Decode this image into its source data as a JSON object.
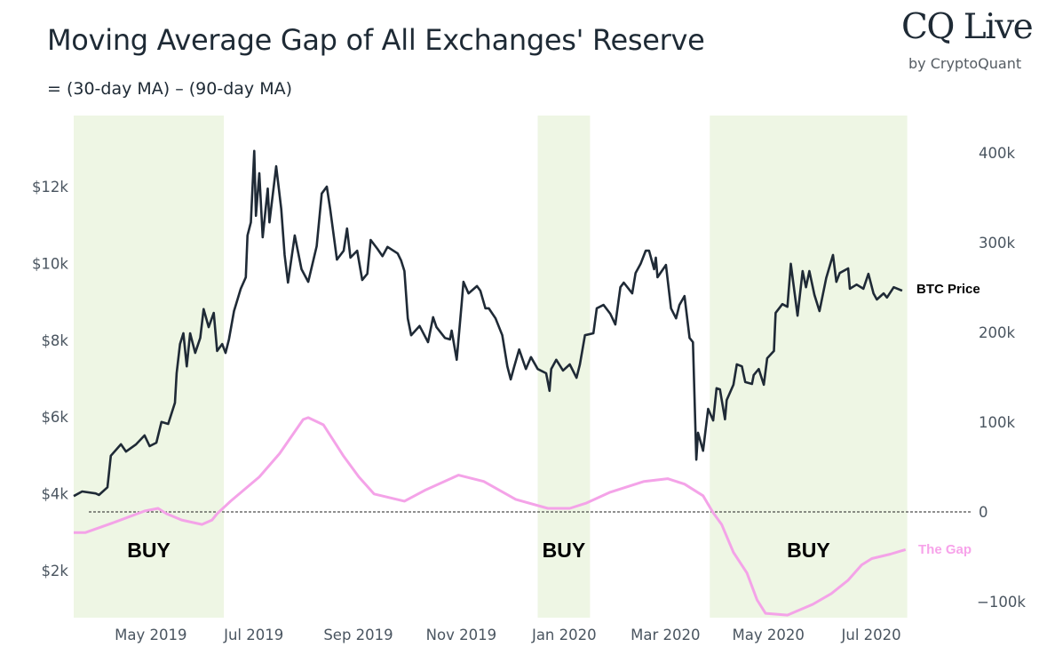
{
  "header": {
    "title": "Moving Average Gap of All Exchanges' Reserve",
    "subtitle": "= (30-day MA) – (90-day MA)"
  },
  "logo": {
    "main": "CQ Live",
    "sub": "by CryptoQuant"
  },
  "chart_data": {
    "type": "line",
    "title": "Moving Average Gap of All Exchanges' Reserve",
    "subtitle": "= (30-day MA) – (90-day MA)",
    "x_range": [
      "2019-03-10",
      "2020-07-16"
    ],
    "x_ticks": [
      {
        "date": "2019-05-01",
        "label": "May 2019"
      },
      {
        "date": "2019-07-01",
        "label": "Jul 2019"
      },
      {
        "date": "2019-09-01",
        "label": "Sep 2019"
      },
      {
        "date": "2019-11-01",
        "label": "Nov 2019"
      },
      {
        "date": "2020-01-01",
        "label": "Jan 2020"
      },
      {
        "date": "2020-03-01",
        "label": "Mar 2020"
      },
      {
        "date": "2020-05-01",
        "label": "May 2020"
      },
      {
        "date": "2020-07-01",
        "label": "Jul 2020"
      }
    ],
    "y_left": {
      "ticks": [
        2000,
        4000,
        6000,
        8000,
        10000,
        12000
      ],
      "tick_labels": [
        "$2k",
        "$4k",
        "$6k",
        "$8k",
        "$10k",
        "$12k"
      ]
    },
    "y_right": {
      "ticks": [
        -100000,
        0,
        100000,
        200000,
        300000,
        400000
      ],
      "tick_labels": [
        "−100k",
        "0",
        "100k",
        "200k",
        "300k",
        "400k"
      ]
    },
    "grid": false,
    "zero_line": {
      "axis": "right",
      "value": 0,
      "style": "dashed"
    },
    "buy_zones": [
      {
        "start": "2019-03-10",
        "end": "2019-06-07",
        "label": "BUY"
      },
      {
        "start": "2019-12-10",
        "end": "2020-01-10",
        "label": "BUY"
      },
      {
        "start": "2020-03-21",
        "end": "2020-07-16",
        "label": "BUY"
      }
    ],
    "colors": {
      "price": "#1f2a36",
      "gap": "#f4a3e8",
      "buy_zone": "#eef6e4",
      "zero_line": "#222222"
    },
    "series": [
      {
        "name": "BTC Price",
        "axis": "left",
        "points": [
          [
            "2019-03-10",
            3940
          ],
          [
            "2019-03-15",
            4060
          ],
          [
            "2019-03-23",
            4010
          ],
          [
            "2019-03-25",
            3970
          ],
          [
            "2019-03-30",
            4170
          ],
          [
            "2019-04-01",
            4990
          ],
          [
            "2019-04-07",
            5290
          ],
          [
            "2019-04-10",
            5100
          ],
          [
            "2019-04-16",
            5290
          ],
          [
            "2019-04-21",
            5520
          ],
          [
            "2019-04-24",
            5240
          ],
          [
            "2019-04-28",
            5330
          ],
          [
            "2019-05-01",
            5870
          ],
          [
            "2019-05-05",
            5820
          ],
          [
            "2019-05-09",
            6370
          ],
          [
            "2019-05-10",
            7140
          ],
          [
            "2019-05-12",
            7900
          ],
          [
            "2019-05-14",
            8180
          ],
          [
            "2019-05-16",
            7320
          ],
          [
            "2019-05-18",
            8180
          ],
          [
            "2019-05-21",
            7670
          ],
          [
            "2019-05-24",
            8060
          ],
          [
            "2019-05-26",
            8810
          ],
          [
            "2019-05-29",
            8340
          ],
          [
            "2019-06-01",
            8710
          ],
          [
            "2019-06-03",
            7720
          ],
          [
            "2019-06-06",
            7900
          ],
          [
            "2019-06-08",
            7670
          ],
          [
            "2019-06-10",
            8020
          ],
          [
            "2019-06-13",
            8760
          ],
          [
            "2019-06-17",
            9340
          ],
          [
            "2019-06-20",
            9640
          ],
          [
            "2019-06-21",
            10730
          ],
          [
            "2019-06-23",
            11070
          ],
          [
            "2019-06-25",
            12930
          ],
          [
            "2019-06-26",
            11240
          ],
          [
            "2019-06-28",
            12350
          ],
          [
            "2019-06-30",
            10680
          ],
          [
            "2019-07-03",
            11950
          ],
          [
            "2019-07-04",
            11070
          ],
          [
            "2019-07-08",
            12530
          ],
          [
            "2019-07-11",
            11420
          ],
          [
            "2019-07-13",
            10220
          ],
          [
            "2019-07-15",
            9500
          ],
          [
            "2019-07-19",
            10730
          ],
          [
            "2019-07-23",
            9850
          ],
          [
            "2019-07-27",
            9520
          ],
          [
            "2019-08-01",
            10450
          ],
          [
            "2019-08-04",
            11820
          ],
          [
            "2019-08-07",
            12000
          ],
          [
            "2019-08-09",
            11420
          ],
          [
            "2019-08-13",
            10100
          ],
          [
            "2019-08-17",
            10330
          ],
          [
            "2019-08-19",
            10910
          ],
          [
            "2019-08-21",
            10150
          ],
          [
            "2019-08-25",
            10330
          ],
          [
            "2019-08-28",
            9570
          ],
          [
            "2019-08-31",
            9730
          ],
          [
            "2019-09-02",
            10610
          ],
          [
            "2019-09-06",
            10380
          ],
          [
            "2019-09-09",
            10190
          ],
          [
            "2019-09-12",
            10430
          ],
          [
            "2019-09-18",
            10260
          ],
          [
            "2019-09-20",
            10080
          ],
          [
            "2019-09-22",
            9800
          ],
          [
            "2019-09-24",
            8570
          ],
          [
            "2019-09-26",
            8130
          ],
          [
            "2019-10-01",
            8370
          ],
          [
            "2019-10-06",
            7950
          ],
          [
            "2019-10-09",
            8600
          ],
          [
            "2019-10-11",
            8340
          ],
          [
            "2019-10-16",
            8060
          ],
          [
            "2019-10-19",
            8020
          ],
          [
            "2019-10-20",
            8250
          ],
          [
            "2019-10-23",
            7490
          ],
          [
            "2019-10-26",
            8990
          ],
          [
            "2019-10-27",
            9520
          ],
          [
            "2019-10-30",
            9220
          ],
          [
            "2019-11-04",
            9410
          ],
          [
            "2019-11-06",
            9290
          ],
          [
            "2019-11-09",
            8830
          ],
          [
            "2019-11-11",
            8830
          ],
          [
            "2019-11-15",
            8570
          ],
          [
            "2019-11-19",
            8130
          ],
          [
            "2019-11-22",
            7320
          ],
          [
            "2019-11-24",
            6980
          ],
          [
            "2019-11-26",
            7300
          ],
          [
            "2019-11-29",
            7760
          ],
          [
            "2019-12-03",
            7250
          ],
          [
            "2019-12-06",
            7560
          ],
          [
            "2019-12-10",
            7250
          ],
          [
            "2019-12-15",
            7140
          ],
          [
            "2019-12-17",
            6680
          ],
          [
            "2019-12-18",
            7250
          ],
          [
            "2019-12-21",
            7490
          ],
          [
            "2019-12-25",
            7210
          ],
          [
            "2019-12-29",
            7370
          ],
          [
            "2020-01-02",
            7020
          ],
          [
            "2020-01-04",
            7370
          ],
          [
            "2020-01-07",
            8130
          ],
          [
            "2020-01-12",
            8180
          ],
          [
            "2020-01-14",
            8830
          ],
          [
            "2020-01-18",
            8920
          ],
          [
            "2020-01-22",
            8690
          ],
          [
            "2020-01-25",
            8410
          ],
          [
            "2020-01-28",
            9380
          ],
          [
            "2020-01-30",
            9500
          ],
          [
            "2020-02-04",
            9220
          ],
          [
            "2020-02-06",
            9750
          ],
          [
            "2020-02-09",
            9990
          ],
          [
            "2020-02-12",
            10330
          ],
          [
            "2020-02-14",
            10330
          ],
          [
            "2020-02-17",
            9850
          ],
          [
            "2020-02-18",
            10150
          ],
          [
            "2020-02-19",
            9640
          ],
          [
            "2020-02-24",
            9960
          ],
          [
            "2020-02-27",
            8830
          ],
          [
            "2020-03-01",
            8570
          ],
          [
            "2020-03-03",
            8920
          ],
          [
            "2020-03-06",
            9150
          ],
          [
            "2020-03-09",
            8060
          ],
          [
            "2020-03-11",
            7950
          ],
          [
            "2020-03-13",
            4890
          ],
          [
            "2020-03-14",
            5590
          ],
          [
            "2020-03-17",
            5120
          ],
          [
            "2020-03-20",
            6210
          ],
          [
            "2020-03-23",
            5910
          ],
          [
            "2020-03-25",
            6750
          ],
          [
            "2020-03-27",
            6720
          ],
          [
            "2020-03-30",
            5940
          ],
          [
            "2020-03-31",
            6440
          ],
          [
            "2020-04-04",
            6840
          ],
          [
            "2020-04-06",
            7370
          ],
          [
            "2020-04-09",
            7320
          ],
          [
            "2020-04-11",
            6910
          ],
          [
            "2020-04-15",
            6860
          ],
          [
            "2020-04-16",
            7090
          ],
          [
            "2020-04-19",
            7250
          ],
          [
            "2020-04-22",
            6840
          ],
          [
            "2020-04-24",
            7530
          ],
          [
            "2020-04-28",
            7720
          ],
          [
            "2020-04-29",
            8710
          ],
          [
            "2020-05-03",
            8940
          ],
          [
            "2020-05-06",
            8870
          ],
          [
            "2020-05-08",
            9990
          ],
          [
            "2020-05-12",
            8640
          ],
          [
            "2020-05-15",
            9800
          ],
          [
            "2020-05-17",
            9380
          ],
          [
            "2020-05-19",
            9800
          ],
          [
            "2020-05-22",
            9180
          ],
          [
            "2020-05-25",
            8760
          ],
          [
            "2020-05-29",
            9620
          ],
          [
            "2020-06-02",
            10220
          ],
          [
            "2020-06-04",
            9520
          ],
          [
            "2020-06-06",
            9750
          ],
          [
            "2020-06-11",
            9870
          ],
          [
            "2020-06-12",
            9340
          ],
          [
            "2020-06-16",
            9450
          ],
          [
            "2020-06-20",
            9340
          ],
          [
            "2020-06-23",
            9730
          ],
          [
            "2020-06-26",
            9220
          ],
          [
            "2020-06-28",
            9060
          ],
          [
            "2020-07-02",
            9220
          ],
          [
            "2020-07-04",
            9110
          ],
          [
            "2020-07-08",
            9380
          ],
          [
            "2020-07-13",
            9290
          ]
        ]
      },
      {
        "name": "The Gap",
        "axis": "right",
        "points": [
          [
            "2019-03-10",
            -23000
          ],
          [
            "2019-03-17",
            -23000
          ],
          [
            "2019-04-04",
            -11000
          ],
          [
            "2019-04-21",
            1000
          ],
          [
            "2019-04-29",
            4000
          ],
          [
            "2019-05-04",
            -2000
          ],
          [
            "2019-05-13",
            -9000
          ],
          [
            "2019-05-25",
            -14000
          ],
          [
            "2019-05-31",
            -9000
          ],
          [
            "2019-06-03",
            -2000
          ],
          [
            "2019-06-11",
            12000
          ],
          [
            "2019-06-28",
            39000
          ],
          [
            "2019-07-10",
            65000
          ],
          [
            "2019-07-24",
            103000
          ],
          [
            "2019-07-27",
            105000
          ],
          [
            "2019-08-05",
            97000
          ],
          [
            "2019-08-17",
            62000
          ],
          [
            "2019-08-26",
            39000
          ],
          [
            "2019-09-04",
            20000
          ],
          [
            "2019-09-22",
            12000
          ],
          [
            "2019-10-04",
            24000
          ],
          [
            "2019-10-24",
            41000
          ],
          [
            "2019-11-08",
            34000
          ],
          [
            "2019-11-27",
            14000
          ],
          [
            "2019-12-16",
            4000
          ],
          [
            "2019-12-29",
            4000
          ],
          [
            "2020-01-08",
            10000
          ],
          [
            "2020-01-22",
            22000
          ],
          [
            "2020-02-11",
            34000
          ],
          [
            "2020-02-25",
            37000
          ],
          [
            "2020-03-06",
            31000
          ],
          [
            "2020-03-17",
            18000
          ],
          [
            "2020-03-23",
            -1000
          ],
          [
            "2020-03-28",
            -14000
          ],
          [
            "2020-04-04",
            -45000
          ],
          [
            "2020-04-12",
            -68000
          ],
          [
            "2020-04-18",
            -98000
          ],
          [
            "2020-04-23",
            -113000
          ],
          [
            "2020-05-06",
            -115000
          ],
          [
            "2020-05-21",
            -103000
          ],
          [
            "2020-06-01",
            -91000
          ],
          [
            "2020-06-11",
            -76000
          ],
          [
            "2020-06-19",
            -59000
          ],
          [
            "2020-06-25",
            -52000
          ],
          [
            "2020-07-06",
            -47000
          ],
          [
            "2020-07-15",
            -42000
          ]
        ]
      }
    ]
  }
}
